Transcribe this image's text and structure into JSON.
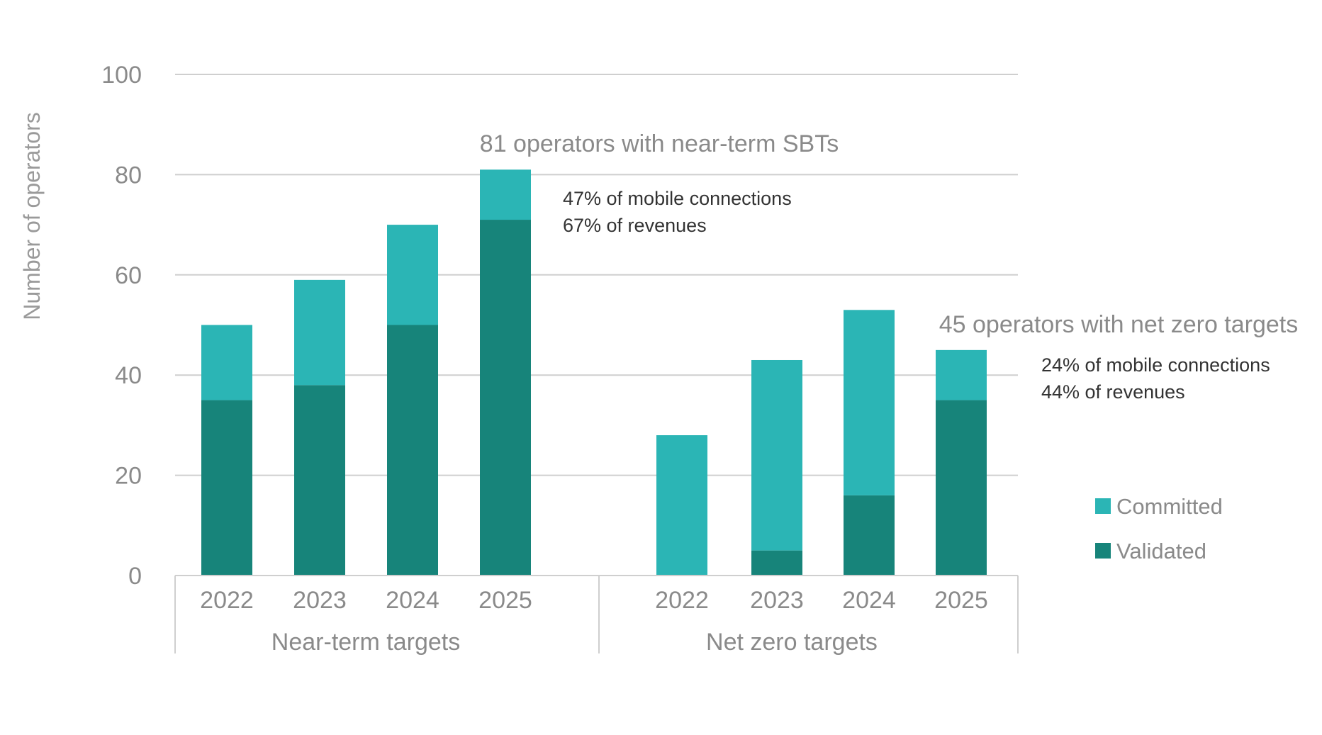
{
  "chart_data": {
    "type": "bar",
    "stacked": true,
    "ylabel": "Number of operators",
    "ylim": [
      0,
      100
    ],
    "yticks": [
      0,
      20,
      40,
      60,
      80,
      100
    ],
    "grid": true,
    "legend": {
      "position": "right",
      "entries": [
        "Committed",
        "Validated"
      ]
    },
    "groups": [
      {
        "label": "Near-term targets",
        "categories": [
          "2022",
          "2023",
          "2024",
          "2025"
        ],
        "series": [
          {
            "name": "Validated",
            "color": "#17847A",
            "values": [
              35,
              38,
              50,
              71
            ]
          },
          {
            "name": "Committed",
            "color": "#2BB5B5",
            "values": [
              15,
              21,
              20,
              10
            ]
          }
        ],
        "annotation": {
          "title": "81 operators with near-term SBTs",
          "lines": [
            "47% of mobile connections",
            "67% of revenues"
          ]
        }
      },
      {
        "label": "Net zero targets",
        "categories": [
          "2022",
          "2023",
          "2024",
          "2025"
        ],
        "series": [
          {
            "name": "Validated",
            "color": "#17847A",
            "values": [
              0,
              5,
              16,
              35
            ]
          },
          {
            "name": "Committed",
            "color": "#2BB5B5",
            "values": [
              28,
              38,
              37,
              10
            ]
          }
        ],
        "annotation": {
          "title": "45 operators with net zero targets",
          "lines": [
            "24% of mobile connections",
            "44% of revenues"
          ]
        }
      }
    ]
  }
}
